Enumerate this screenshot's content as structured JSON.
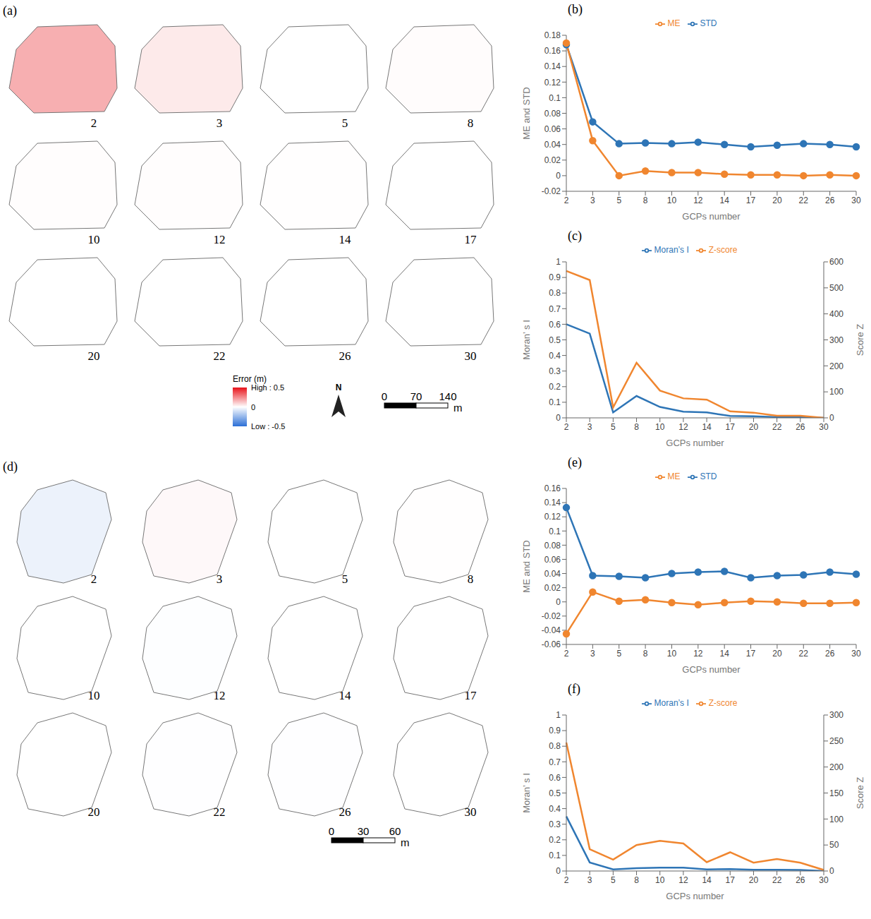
{
  "maps": [
    {
      "label": "(a)",
      "gcps": [
        2,
        3,
        5,
        8,
        10,
        12,
        14,
        17,
        20,
        22,
        26,
        30
      ],
      "shape": "octagon",
      "colorbar": {
        "title": "Error (m)",
        "range": [
          -0.5,
          0.5
        ],
        "ticks": [
          {
            "value": 0.5,
            "label": "High : 0.5"
          },
          {
            "value": 0,
            "label": "0"
          },
          {
            "value": -0.5,
            "label": "Low : -0.5"
          }
        ]
      },
      "north": "N",
      "scale_ticks": [
        0,
        70,
        140
      ],
      "scale_unit": "m"
    },
    {
      "label": "(d)",
      "gcps": [
        2,
        3,
        5,
        8,
        10,
        12,
        14,
        17,
        20,
        22,
        26,
        30
      ],
      "shape": "oblong",
      "scale_ticks": [
        0,
        30,
        60
      ],
      "scale_unit": "m"
    }
  ],
  "chart_data": [
    {
      "label": "(b)",
      "type": "line",
      "categories": [
        2,
        3,
        5,
        8,
        10,
        12,
        14,
        17,
        20,
        22,
        26,
        30
      ],
      "x_label": "GCPs number",
      "y_label": "ME and STD",
      "ylim": [
        -0.02,
        0.18
      ],
      "yticks": [
        -0.02,
        0,
        0.02,
        0.04,
        0.06,
        0.08,
        0.1,
        0.12,
        0.14,
        0.16,
        0.18
      ],
      "legend": "top",
      "series": [
        {
          "name": "STD",
          "color": "#2e75b6",
          "marker": "circle",
          "values": [
            0.168,
            0.069,
            0.041,
            0.042,
            0.041,
            0.043,
            0.04,
            0.037,
            0.039,
            0.041,
            0.04,
            0.037
          ]
        },
        {
          "name": "ME",
          "color": "#f0862f",
          "marker": "circle",
          "values": [
            0.17,
            0.045,
            0.0,
            0.006,
            0.004,
            0.004,
            0.002,
            0.001,
            0.001,
            0.0,
            0.001,
            0.0
          ]
        }
      ]
    },
    {
      "label": "(c)",
      "type": "line",
      "categories": [
        2,
        3,
        5,
        8,
        10,
        12,
        14,
        17,
        20,
        22,
        26,
        30
      ],
      "x_label": "GCPs number",
      "y_label": "Moran’ s I",
      "y2_label": "Score Z",
      "ylim": [
        0,
        1
      ],
      "yticks": [
        0,
        0.1,
        0.2,
        0.3,
        0.4,
        0.5,
        0.6,
        0.7,
        0.8,
        0.9,
        1
      ],
      "y2lim": [
        0,
        600
      ],
      "y2ticks": [
        0,
        100,
        200,
        300,
        400,
        500,
        600
      ],
      "legend": "top",
      "series": [
        {
          "name": "Moran’s I",
          "color": "#2e75b6",
          "marker": "none",
          "values": [
            0.6,
            0.54,
            0.035,
            0.14,
            0.07,
            0.04,
            0.035,
            0.012,
            0.01,
            0.005,
            0.005,
            0.0
          ]
        },
        {
          "name": "Z-score",
          "color": "#f0862f",
          "marker": "none",
          "axis": "y2",
          "values": [
            565,
            530,
            40,
            212,
            105,
            75,
            70,
            25,
            20,
            8,
            8,
            0
          ]
        }
      ]
    },
    {
      "label": "(e)",
      "type": "line",
      "categories": [
        2,
        3,
        5,
        8,
        10,
        12,
        14,
        17,
        20,
        22,
        26,
        30
      ],
      "x_label": "GCPs number",
      "y_label": "ME and STD",
      "ylim": [
        -0.06,
        0.16
      ],
      "yticks": [
        -0.06,
        -0.04,
        -0.02,
        0,
        0.02,
        0.04,
        0.06,
        0.08,
        0.1,
        0.12,
        0.14,
        0.16
      ],
      "legend": "top",
      "series": [
        {
          "name": "STD",
          "color": "#2e75b6",
          "marker": "circle",
          "values": [
            0.133,
            0.037,
            0.036,
            0.034,
            0.04,
            0.042,
            0.043,
            0.034,
            0.037,
            0.038,
            0.042,
            0.039
          ]
        },
        {
          "name": "ME",
          "color": "#f0862f",
          "marker": "circle",
          "values": [
            -0.045,
            0.014,
            0.001,
            0.003,
            -0.001,
            -0.004,
            -0.001,
            0.001,
            0.0,
            -0.002,
            -0.002,
            -0.001
          ]
        }
      ]
    },
    {
      "label": "(f)",
      "type": "line",
      "categories": [
        2,
        3,
        5,
        8,
        10,
        12,
        14,
        17,
        20,
        22,
        26,
        30
      ],
      "x_label": "GCPs number",
      "y_label": "Moran’ s I",
      "y2_label": "Score Z",
      "ylim": [
        0,
        1
      ],
      "yticks": [
        0,
        0.1,
        0.2,
        0.3,
        0.4,
        0.5,
        0.6,
        0.7,
        0.8,
        0.9,
        1
      ],
      "y2lim": [
        0,
        300
      ],
      "y2ticks": [
        0,
        50,
        100,
        150,
        200,
        250,
        300
      ],
      "legend": "top",
      "series": [
        {
          "name": "Moran’s I",
          "color": "#2e75b6",
          "marker": "none",
          "values": [
            0.35,
            0.055,
            0.01,
            0.018,
            0.022,
            0.022,
            0.01,
            0.012,
            0.008,
            0.008,
            0.007,
            0.0
          ]
        },
        {
          "name": "Z-score",
          "color": "#f0862f",
          "marker": "none",
          "axis": "y2",
          "values": [
            247,
            42,
            22,
            50,
            58,
            53,
            17,
            36,
            16,
            23,
            16,
            2
          ]
        }
      ]
    }
  ]
}
